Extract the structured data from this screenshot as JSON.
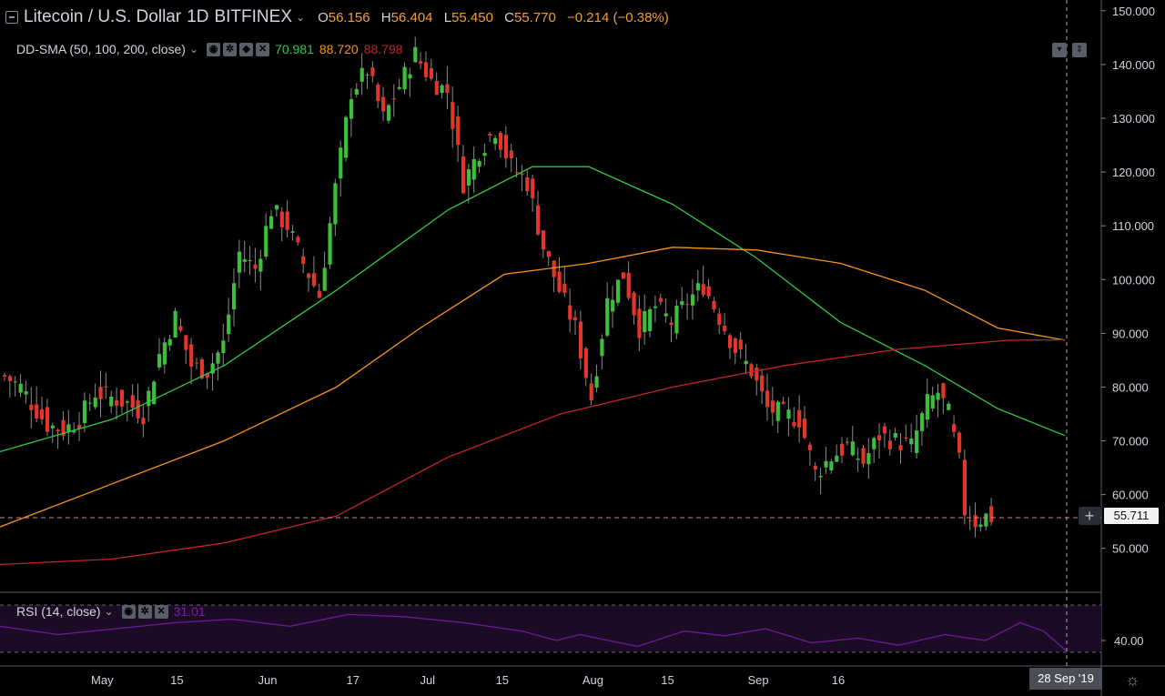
{
  "header": {
    "symbol_title": "Litecoin / U.S. Dollar",
    "interval": "1D",
    "exchange": "BITFINEX",
    "ohlc": {
      "open_label": "O",
      "open": "56.156",
      "high_label": "H",
      "high": "56.404",
      "low_label": "L",
      "low": "55.450",
      "close_label": "C",
      "close": "55.770",
      "change": "−0.214 (−0.38%)"
    },
    "value_color": "#f39c3c"
  },
  "indicator_sma": {
    "label": "DD-SMA (50, 100, 200, close)",
    "v50": "70.981",
    "v100": "88.720",
    "v200": "88.798",
    "colors": {
      "v50": "#2ecc40",
      "v100": "#f7931a",
      "v200": "#c0232b"
    }
  },
  "indicator_rsi": {
    "label": "RSI (14, close)",
    "value": "31.01",
    "color": "#7b1fa2"
  },
  "last_price_label": "55.711",
  "cursor_date_label": "28 Sep '19",
  "icons": [
    "settings-icon",
    "visibility-icon",
    "close-icon",
    "collapse-icon",
    "theme-sun-icon"
  ],
  "chart_data": {
    "type": "candlestick",
    "title": "Litecoin / U.S. Dollar 1D BITFINEX",
    "price_axis": {
      "ticks": [
        50,
        60,
        70,
        80,
        90,
        100,
        110,
        120,
        130,
        140,
        150
      ],
      "tick_labels": [
        "50.000",
        "60.000",
        "70.000",
        "80.000",
        "90.000",
        "100.000",
        "110.000",
        "120.000",
        "130.000",
        "140.000",
        "150.000"
      ],
      "range": [
        42,
        152
      ]
    },
    "rsi_axis": {
      "ticks": [
        40
      ],
      "tick_labels": [
        "40.00"
      ],
      "range": [
        20,
        80
      ]
    },
    "time_axis": {
      "labels": [
        "May",
        "15",
        "Jun",
        "17",
        "Jul",
        "15",
        "Aug",
        "15",
        "Sep",
        "16"
      ],
      "label_day_index": [
        5,
        19,
        36,
        52,
        66,
        80,
        97,
        111,
        128,
        143
      ],
      "day_count": 157
    },
    "anchors_close": [
      [
        0,
        82
      ],
      [
        3,
        80
      ],
      [
        5,
        77
      ],
      [
        8,
        73
      ],
      [
        11,
        72
      ],
      [
        14,
        74
      ],
      [
        17,
        79
      ],
      [
        20,
        78
      ],
      [
        23,
        77
      ],
      [
        26,
        75
      ],
      [
        29,
        86
      ],
      [
        32,
        93
      ],
      [
        35,
        84
      ],
      [
        38,
        83
      ],
      [
        41,
        88
      ],
      [
        44,
        105
      ],
      [
        47,
        102
      ],
      [
        50,
        113
      ],
      [
        53,
        110
      ],
      [
        56,
        103
      ],
      [
        59,
        97
      ],
      [
        62,
        117
      ],
      [
        65,
        135
      ],
      [
        68,
        139
      ],
      [
        71,
        130
      ],
      [
        74,
        136
      ],
      [
        77,
        142
      ],
      [
        80,
        137
      ],
      [
        83,
        135
      ],
      [
        86,
        118
      ],
      [
        89,
        124
      ],
      [
        92,
        128
      ],
      [
        95,
        121
      ],
      [
        98,
        118
      ],
      [
        101,
        106
      ],
      [
        104,
        98
      ],
      [
        107,
        91
      ],
      [
        110,
        78
      ],
      [
        113,
        96
      ],
      [
        116,
        101
      ],
      [
        119,
        91
      ],
      [
        122,
        95
      ],
      [
        125,
        92
      ],
      [
        128,
        96
      ],
      [
        131,
        99
      ],
      [
        134,
        93
      ],
      [
        137,
        87
      ],
      [
        140,
        83
      ],
      [
        143,
        76
      ],
      [
        146,
        75
      ],
      [
        149,
        74
      ],
      [
        152,
        64
      ],
      [
        155,
        67
      ],
      [
        158,
        69
      ],
      [
        161,
        66
      ],
      [
        164,
        71
      ],
      [
        167,
        70
      ],
      [
        170,
        69
      ],
      [
        173,
        77
      ],
      [
        175,
        79
      ],
      [
        177,
        75
      ],
      [
        179,
        66
      ],
      [
        180,
        57
      ],
      [
        182,
        55
      ],
      [
        184,
        56
      ],
      [
        185,
        55.8
      ]
    ],
    "sma": [
      {
        "name": "SMA 50",
        "color": "#2ecc40",
        "points": [
          [
            0,
            68
          ],
          [
            20,
            74
          ],
          [
            40,
            84
          ],
          [
            60,
            98
          ],
          [
            80,
            113
          ],
          [
            95,
            121
          ],
          [
            105,
            121
          ],
          [
            120,
            114
          ],
          [
            135,
            104
          ],
          [
            150,
            92
          ],
          [
            165,
            84
          ],
          [
            178,
            76
          ],
          [
            190,
            70.98
          ]
        ]
      },
      {
        "name": "SMA 100",
        "color": "#f7931a",
        "points": [
          [
            0,
            54
          ],
          [
            20,
            62
          ],
          [
            40,
            70
          ],
          [
            60,
            80
          ],
          [
            75,
            91
          ],
          [
            90,
            101
          ],
          [
            105,
            103
          ],
          [
            120,
            106
          ],
          [
            135,
            105.5
          ],
          [
            150,
            103
          ],
          [
            165,
            98
          ],
          [
            178,
            91
          ],
          [
            190,
            88.72
          ]
        ]
      },
      {
        "name": "SMA 200",
        "color": "#c0232b",
        "points": [
          [
            0,
            47
          ],
          [
            20,
            48
          ],
          [
            40,
            51
          ],
          [
            60,
            56
          ],
          [
            80,
            67
          ],
          [
            100,
            75
          ],
          [
            120,
            80
          ],
          [
            140,
            84
          ],
          [
            160,
            87
          ],
          [
            180,
            88.7
          ],
          [
            190,
            88.8
          ]
        ]
      }
    ],
    "rsi": [
      [
        0,
        52
      ],
      [
        10,
        45
      ],
      [
        20,
        50
      ],
      [
        30,
        55
      ],
      [
        40,
        58
      ],
      [
        50,
        52
      ],
      [
        60,
        62
      ],
      [
        70,
        60
      ],
      [
        80,
        55
      ],
      [
        90,
        48
      ],
      [
        96,
        40
      ],
      [
        100,
        45
      ],
      [
        110,
        35
      ],
      [
        118,
        48
      ],
      [
        125,
        44
      ],
      [
        132,
        50
      ],
      [
        140,
        38
      ],
      [
        148,
        42
      ],
      [
        155,
        36
      ],
      [
        163,
        45
      ],
      [
        170,
        40
      ],
      [
        176,
        55
      ],
      [
        180,
        48
      ],
      [
        184,
        31
      ]
    ],
    "current_price": 55.711
  }
}
